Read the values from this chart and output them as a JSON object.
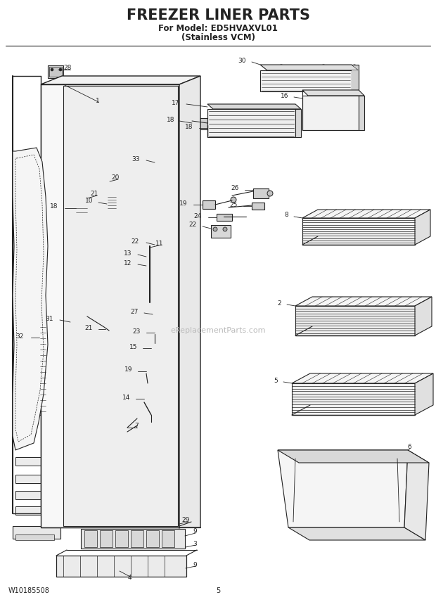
{
  "title_line1": "FREEZER LINER PARTS",
  "title_line2": "For Model: ED5HVAXVL01",
  "title_line3": "(Stainless VCM)",
  "footer_left": "W10185508",
  "footer_center": "5",
  "bg_color": "#ffffff",
  "line_color": "#222222",
  "watermark": "eReplacementParts.com"
}
